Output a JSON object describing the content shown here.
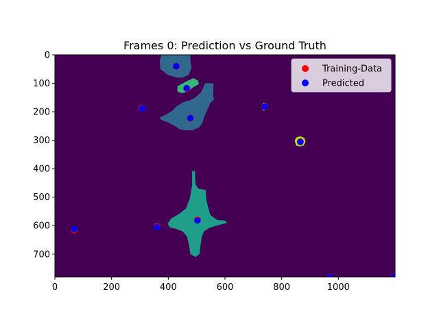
{
  "chart_data": {
    "type": "scatter",
    "title": "Frames 0: Prediction vs Ground Truth",
    "xlabel": "",
    "ylabel": "",
    "xlim": [
      0,
      1200
    ],
    "ylim": [
      780,
      0
    ],
    "y_inverted": true,
    "x_ticks": [
      {
        "value": 0,
        "label": "0"
      },
      {
        "value": 200,
        "label": "200"
      },
      {
        "value": 400,
        "label": "400"
      },
      {
        "value": 600,
        "label": "600"
      },
      {
        "value": 800,
        "label": "800"
      },
      {
        "value": 1000,
        "label": "1000"
      }
    ],
    "y_ticks": [
      {
        "value": 0,
        "label": "0"
      },
      {
        "value": 100,
        "label": "100"
      },
      {
        "value": 200,
        "label": "200"
      },
      {
        "value": 300,
        "label": "300"
      },
      {
        "value": 400,
        "label": "400"
      },
      {
        "value": 500,
        "label": "500"
      },
      {
        "value": 600,
        "label": "600"
      },
      {
        "value": 700,
        "label": "700"
      }
    ],
    "grid": false,
    "legend": {
      "placement": "top-right"
    },
    "background_image": {
      "description": "segmentation mask colored with viridis colormap",
      "background_color": "#440154",
      "regions": [
        {
          "name": "blob-top",
          "color": "#31688e",
          "points": [
            [
              375,
              0
            ],
            [
              478,
              0
            ],
            [
              478,
              20
            ],
            [
              482,
              45
            ],
            [
              472,
              70
            ],
            [
              450,
              80
            ],
            [
              430,
              80
            ],
            [
              398,
              70
            ],
            [
              372,
              50
            ],
            [
              370,
              25
            ]
          ]
        },
        {
          "name": "blob-small-green",
          "color": "#35b779",
          "points": [
            [
              432,
              110
            ],
            [
              460,
              95
            ],
            [
              488,
              82
            ],
            [
              505,
              90
            ],
            [
              508,
              103
            ],
            [
              486,
              115
            ],
            [
              470,
              128
            ],
            [
              448,
              135
            ],
            [
              432,
              128
            ]
          ]
        },
        {
          "name": "blob-large-blue",
          "color": "#31688e",
          "points": [
            [
              530,
              100
            ],
            [
              560,
              100
            ],
            [
              558,
              145
            ],
            [
              562,
              155
            ],
            [
              548,
              170
            ],
            [
              540,
              188
            ],
            [
              528,
              215
            ],
            [
              520,
              240
            ],
            [
              508,
              255
            ],
            [
              485,
              265
            ],
            [
              458,
              265
            ],
            [
              438,
              260
            ],
            [
              420,
              248
            ],
            [
              392,
              234
            ],
            [
              375,
              228
            ],
            [
              370,
              220
            ],
            [
              392,
              210
            ],
            [
              416,
              195
            ],
            [
              430,
              180
            ],
            [
              456,
              165
            ],
            [
              476,
              160
            ],
            [
              495,
              150
            ],
            [
              515,
              132
            ]
          ]
        },
        {
          "name": "blob-star-teal",
          "color": "#1f9e89",
          "points": [
            [
              484,
              408
            ],
            [
              494,
              408
            ],
            [
              496,
              455
            ],
            [
              506,
              470
            ],
            [
              532,
              475
            ],
            [
              533,
              500
            ],
            [
              538,
              525
            ],
            [
              548,
              562
            ],
            [
              572,
              580
            ],
            [
              600,
              582
            ],
            [
              608,
              590
            ],
            [
              578,
              598
            ],
            [
              544,
              608
            ],
            [
              526,
              620
            ],
            [
              518,
              640
            ],
            [
              514,
              668
            ],
            [
              510,
              700
            ],
            [
              496,
              710
            ],
            [
              478,
              700
            ],
            [
              472,
              662
            ],
            [
              466,
              638
            ],
            [
              450,
              620
            ],
            [
              423,
              610
            ],
            [
              405,
              606
            ],
            [
              398,
              593
            ],
            [
              410,
              575
            ],
            [
              436,
              560
            ],
            [
              462,
              540
            ],
            [
              476,
              505
            ],
            [
              480,
              480
            ],
            [
              484,
              460
            ],
            [
              484,
              440
            ]
          ]
        },
        {
          "name": "blob-ring-lime",
          "color": "#b5de2b",
          "points": [
            [
              846,
              300
            ],
            [
              852,
              290
            ],
            [
              866,
              286
            ],
            [
              880,
              292
            ],
            [
              884,
              305
            ],
            [
              878,
              318
            ],
            [
              864,
              322
            ],
            [
              850,
              318
            ]
          ]
        },
        {
          "name": "blob-ring-hole",
          "color": "#440154",
          "points": [
            [
              856,
              303
            ],
            [
              860,
              296
            ],
            [
              868,
              294
            ],
            [
              875,
              300
            ],
            [
              874,
              310
            ],
            [
              866,
              314
            ],
            [
              858,
              312
            ]
          ]
        },
        {
          "name": "blob-tiny-green",
          "color": "#4ac16d",
          "points": [
            [
              733,
              168
            ],
            [
              745,
              170
            ],
            [
              750,
              182
            ],
            [
              745,
              190
            ],
            [
              738,
              198
            ],
            [
              732,
              192
            ],
            [
              735,
              180
            ]
          ]
        }
      ]
    },
    "series": [
      {
        "name": "Training-Data",
        "color": "#ff0000",
        "points": [
          {
            "x": 428,
            "y": 40
          },
          {
            "x": 465,
            "y": 118
          },
          {
            "x": 307,
            "y": 187
          },
          {
            "x": 478,
            "y": 222
          },
          {
            "x": 740,
            "y": 182
          },
          {
            "x": 866,
            "y": 305
          },
          {
            "x": 68,
            "y": 615
          },
          {
            "x": 360,
            "y": 603
          },
          {
            "x": 503,
            "y": 580
          },
          {
            "x": 970,
            "y": 780
          },
          {
            "x": 1198,
            "y": 778
          }
        ]
      },
      {
        "name": "Predicted",
        "color": "#0000ff",
        "points": [
          {
            "x": 428,
            "y": 40
          },
          {
            "x": 465,
            "y": 117
          },
          {
            "x": 308,
            "y": 188
          },
          {
            "x": 478,
            "y": 222
          },
          {
            "x": 740,
            "y": 182
          },
          {
            "x": 866,
            "y": 306
          },
          {
            "x": 68,
            "y": 612
          },
          {
            "x": 360,
            "y": 605
          },
          {
            "x": 503,
            "y": 582
          },
          {
            "x": 970,
            "y": 780
          },
          {
            "x": 1198,
            "y": 778
          }
        ]
      }
    ]
  }
}
